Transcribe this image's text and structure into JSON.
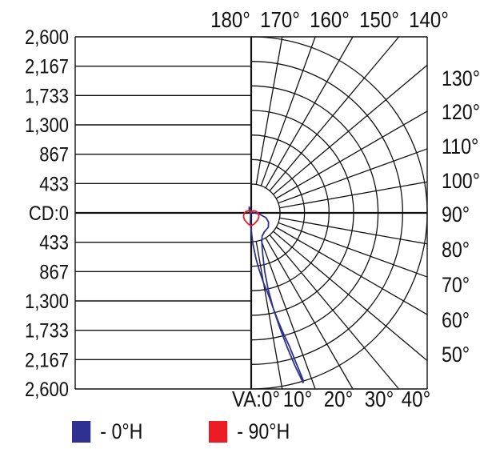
{
  "chart_data": {
    "type": "polar",
    "candela_ticks": [
      "2,600",
      "2,167",
      "1,733",
      "1,300",
      "867",
      "433",
      "CD:0",
      "433",
      "867",
      "1,300",
      "1,733",
      "2,167",
      "2,600"
    ],
    "max_candela": 2600,
    "top_angle_labels": [
      "180°",
      "170°",
      "160°",
      "150°",
      "140°"
    ],
    "right_angle_labels": [
      "130°",
      "120°",
      "110°",
      "100°",
      "90°",
      "80°",
      "70°",
      "60°",
      "50°"
    ],
    "bottom_angle_labels": [
      "VA:0°",
      "10°",
      "20°",
      "30°",
      "40°"
    ],
    "grid": true,
    "series": [
      {
        "name": "- 0°H",
        "color": "#2e3192",
        "points": [
          [
            0,
            250
          ],
          [
            3,
            450
          ],
          [
            6,
            680
          ],
          [
            8,
            850
          ],
          [
            10,
            1050
          ],
          [
            12,
            1250
          ],
          [
            13,
            1450
          ],
          [
            14,
            1650
          ],
          [
            15,
            1850
          ],
          [
            16,
            2050
          ],
          [
            16.5,
            2250
          ],
          [
            17,
            2450
          ],
          [
            17.3,
            2600
          ],
          [
            17,
            2620
          ],
          [
            16,
            2350
          ],
          [
            15,
            2050
          ],
          [
            14,
            1750
          ],
          [
            13,
            1450
          ],
          [
            12.5,
            1150
          ],
          [
            13,
            880
          ],
          [
            15.5,
            640
          ],
          [
            17.5,
            540
          ],
          [
            20,
            460
          ],
          [
            25,
            380
          ],
          [
            35,
            340
          ],
          [
            50,
            330
          ],
          [
            62,
            290
          ],
          [
            72,
            230
          ],
          [
            82,
            120
          ],
          [
            90,
            50
          ],
          [
            100,
            30
          ],
          [
            120,
            20
          ],
          [
            160,
            15
          ],
          [
            180,
            20
          ],
          [
            200,
            90
          ],
          [
            240,
            30
          ],
          [
            270,
            20
          ],
          [
            320,
            15
          ],
          [
            355,
            150
          ],
          [
            360,
            250
          ]
        ]
      },
      {
        "name": "- 90°H",
        "color": "#ed1c24",
        "points": [
          [
            0,
            190
          ],
          [
            15,
            170
          ],
          [
            30,
            150
          ],
          [
            45,
            140
          ],
          [
            60,
            130
          ],
          [
            75,
            115
          ],
          [
            90,
            100
          ],
          [
            105,
            80
          ],
          [
            120,
            60
          ],
          [
            135,
            45
          ],
          [
            150,
            30
          ],
          [
            165,
            15
          ],
          [
            180,
            5
          ],
          [
            195,
            15
          ],
          [
            210,
            30
          ],
          [
            225,
            45
          ],
          [
            240,
            60
          ],
          [
            255,
            80
          ],
          [
            270,
            100
          ],
          [
            285,
            115
          ],
          [
            300,
            130
          ],
          [
            315,
            140
          ],
          [
            330,
            150
          ],
          [
            345,
            170
          ],
          [
            360,
            190
          ]
        ]
      }
    ]
  },
  "legend": {
    "items": [
      {
        "label": "- 0°H",
        "color": "#2e3192"
      },
      {
        "label": "- 90°H",
        "color": "#ed1c24"
      }
    ]
  }
}
